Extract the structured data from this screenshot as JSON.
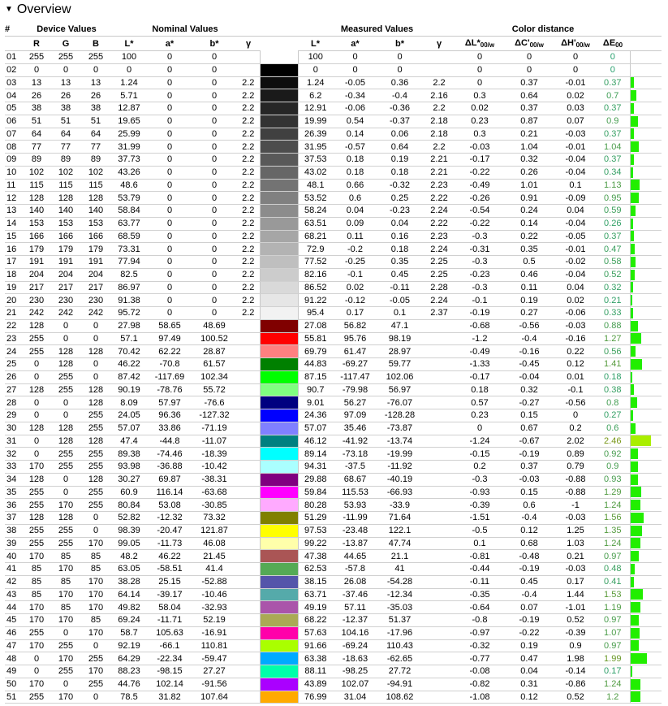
{
  "title": "Overview",
  "headers": {
    "num": "#",
    "device": "Device Values",
    "nominal": "Nominal Values",
    "measured": "Measured Values",
    "distance": "Color distance",
    "R": "R",
    "G": "G",
    "B": "B",
    "L": "L*",
    "a": "a*",
    "b": "b*",
    "gamma": "γ",
    "dL": "ΔL*",
    "dL_sub": "00/w",
    "dC": "ΔC'",
    "dC_sub": "00/w",
    "dH": "ΔH'",
    "dH_sub": "00/w",
    "dE": "ΔE",
    "dE_sub": "00"
  },
  "colors": {
    "bar_ok": "#22ee00",
    "bar_warn": "#aaee00",
    "grid": "#d0d0d0"
  },
  "rows": [
    [
      "01",
      "255",
      "255",
      "255",
      "100",
      "0",
      "0",
      "",
      "100",
      "0",
      "0",
      "",
      "0",
      "0",
      "0",
      "0"
    ],
    [
      "02",
      "0",
      "0",
      "0",
      "0",
      "0",
      "0",
      "",
      "0",
      "0",
      "0",
      "",
      "0",
      "0",
      "0",
      "0"
    ],
    [
      "03",
      "13",
      "13",
      "13",
      "1.24",
      "0",
      "0",
      "2.2",
      "1.24",
      "-0.05",
      "0.36",
      "2.2",
      "0",
      "0.37",
      "-0.01",
      "0.37"
    ],
    [
      "04",
      "26",
      "26",
      "26",
      "5.71",
      "0",
      "0",
      "2.2",
      "6.2",
      "-0.34",
      "-0.4",
      "2.16",
      "0.3",
      "0.64",
      "0.02",
      "0.7"
    ],
    [
      "05",
      "38",
      "38",
      "38",
      "12.87",
      "0",
      "0",
      "2.2",
      "12.91",
      "-0.06",
      "-0.36",
      "2.2",
      "0.02",
      "0.37",
      "0.03",
      "0.37"
    ],
    [
      "06",
      "51",
      "51",
      "51",
      "19.65",
      "0",
      "0",
      "2.2",
      "19.99",
      "0.54",
      "-0.37",
      "2.18",
      "0.23",
      "0.87",
      "0.07",
      "0.9"
    ],
    [
      "07",
      "64",
      "64",
      "64",
      "25.99",
      "0",
      "0",
      "2.2",
      "26.39",
      "0.14",
      "0.06",
      "2.18",
      "0.3",
      "0.21",
      "-0.03",
      "0.37"
    ],
    [
      "08",
      "77",
      "77",
      "77",
      "31.99",
      "0",
      "0",
      "2.2",
      "31.95",
      "-0.57",
      "0.64",
      "2.2",
      "-0.03",
      "1.04",
      "-0.01",
      "1.04"
    ],
    [
      "09",
      "89",
      "89",
      "89",
      "37.73",
      "0",
      "0",
      "2.2",
      "37.53",
      "0.18",
      "0.19",
      "2.21",
      "-0.17",
      "0.32",
      "-0.04",
      "0.37"
    ],
    [
      "10",
      "102",
      "102",
      "102",
      "43.26",
      "0",
      "0",
      "2.2",
      "43.02",
      "0.18",
      "0.18",
      "2.21",
      "-0.22",
      "0.26",
      "-0.04",
      "0.34"
    ],
    [
      "11",
      "115",
      "115",
      "115",
      "48.6",
      "0",
      "0",
      "2.2",
      "48.1",
      "0.66",
      "-0.32",
      "2.23",
      "-0.49",
      "1.01",
      "0.1",
      "1.13"
    ],
    [
      "12",
      "128",
      "128",
      "128",
      "53.79",
      "0",
      "0",
      "2.2",
      "53.52",
      "0.6",
      "0.25",
      "2.22",
      "-0.26",
      "0.91",
      "-0.09",
      "0.95"
    ],
    [
      "13",
      "140",
      "140",
      "140",
      "58.84",
      "0",
      "0",
      "2.2",
      "58.24",
      "0.04",
      "-0.23",
      "2.24",
      "-0.54",
      "0.24",
      "0.04",
      "0.59"
    ],
    [
      "14",
      "153",
      "153",
      "153",
      "63.77",
      "0",
      "0",
      "2.2",
      "63.51",
      "0.09",
      "0.04",
      "2.22",
      "-0.22",
      "0.14",
      "-0.04",
      "0.26"
    ],
    [
      "15",
      "166",
      "166",
      "166",
      "68.59",
      "0",
      "0",
      "2.2",
      "68.21",
      "0.11",
      "0.16",
      "2.23",
      "-0.3",
      "0.22",
      "-0.05",
      "0.37"
    ],
    [
      "16",
      "179",
      "179",
      "179",
      "73.31",
      "0",
      "0",
      "2.2",
      "72.9",
      "-0.2",
      "0.18",
      "2.24",
      "-0.31",
      "0.35",
      "-0.01",
      "0.47"
    ],
    [
      "17",
      "191",
      "191",
      "191",
      "77.94",
      "0",
      "0",
      "2.2",
      "77.52",
      "-0.25",
      "0.35",
      "2.25",
      "-0.3",
      "0.5",
      "-0.02",
      "0.58"
    ],
    [
      "18",
      "204",
      "204",
      "204",
      "82.5",
      "0",
      "0",
      "2.2",
      "82.16",
      "-0.1",
      "0.45",
      "2.25",
      "-0.23",
      "0.46",
      "-0.04",
      "0.52"
    ],
    [
      "19",
      "217",
      "217",
      "217",
      "86.97",
      "0",
      "0",
      "2.2",
      "86.52",
      "0.02",
      "-0.11",
      "2.28",
      "-0.3",
      "0.11",
      "0.04",
      "0.32"
    ],
    [
      "20",
      "230",
      "230",
      "230",
      "91.38",
      "0",
      "0",
      "2.2",
      "91.22",
      "-0.12",
      "-0.05",
      "2.24",
      "-0.1",
      "0.19",
      "0.02",
      "0.21"
    ],
    [
      "21",
      "242",
      "242",
      "242",
      "95.72",
      "0",
      "0",
      "2.2",
      "95.4",
      "0.17",
      "0.1",
      "2.37",
      "-0.19",
      "0.27",
      "-0.06",
      "0.33"
    ],
    [
      "22",
      "128",
      "0",
      "0",
      "27.98",
      "58.65",
      "48.69",
      "",
      "27.08",
      "56.82",
      "47.1",
      "",
      "-0.68",
      "-0.56",
      "-0.03",
      "0.88"
    ],
    [
      "23",
      "255",
      "0",
      "0",
      "57.1",
      "97.49",
      "100.52",
      "",
      "55.81",
      "95.76",
      "98.19",
      "",
      "-1.2",
      "-0.4",
      "-0.16",
      "1.27"
    ],
    [
      "24",
      "255",
      "128",
      "128",
      "70.42",
      "62.22",
      "28.87",
      "",
      "69.79",
      "61.47",
      "28.97",
      "",
      "-0.49",
      "-0.16",
      "0.22",
      "0.56"
    ],
    [
      "25",
      "0",
      "128",
      "0",
      "46.22",
      "-70.8",
      "61.57",
      "",
      "44.83",
      "-69.27",
      "59.77",
      "",
      "-1.33",
      "-0.45",
      "0.12",
      "1.41"
    ],
    [
      "26",
      "0",
      "255",
      "0",
      "87.42",
      "-117.69",
      "102.34",
      "",
      "87.15",
      "-117.47",
      "102.06",
      "",
      "-0.17",
      "-0.04",
      "0.01",
      "0.18"
    ],
    [
      "27",
      "128",
      "255",
      "128",
      "90.19",
      "-78.76",
      "55.72",
      "",
      "90.7",
      "-79.98",
      "56.97",
      "",
      "0.18",
      "0.32",
      "-0.1",
      "0.38"
    ],
    [
      "28",
      "0",
      "0",
      "128",
      "8.09",
      "57.97",
      "-76.6",
      "",
      "9.01",
      "56.27",
      "-76.07",
      "",
      "0.57",
      "-0.27",
      "-0.56",
      "0.8"
    ],
    [
      "29",
      "0",
      "0",
      "255",
      "24.05",
      "96.36",
      "-127.32",
      "",
      "24.36",
      "97.09",
      "-128.28",
      "",
      "0.23",
      "0.15",
      "0",
      "0.27"
    ],
    [
      "30",
      "128",
      "128",
      "255",
      "57.07",
      "33.86",
      "-71.19",
      "",
      "57.07",
      "35.46",
      "-73.87",
      "",
      "0",
      "0.67",
      "0.2",
      "0.6"
    ],
    [
      "31",
      "0",
      "128",
      "128",
      "47.4",
      "-44.8",
      "-11.07",
      "",
      "46.12",
      "-41.92",
      "-13.74",
      "",
      "-1.24",
      "-0.67",
      "2.02",
      "2.46"
    ],
    [
      "32",
      "0",
      "255",
      "255",
      "89.38",
      "-74.46",
      "-18.39",
      "",
      "89.14",
      "-73.18",
      "-19.99",
      "",
      "-0.15",
      "-0.19",
      "0.89",
      "0.92"
    ],
    [
      "33",
      "170",
      "255",
      "255",
      "93.98",
      "-36.88",
      "-10.42",
      "",
      "94.31",
      "-37.5",
      "-11.92",
      "",
      "0.2",
      "0.37",
      "0.79",
      "0.9"
    ],
    [
      "34",
      "128",
      "0",
      "128",
      "30.27",
      "69.87",
      "-38.31",
      "",
      "29.88",
      "68.67",
      "-40.19",
      "",
      "-0.3",
      "-0.03",
      "-0.88",
      "0.93"
    ],
    [
      "35",
      "255",
      "0",
      "255",
      "60.9",
      "116.14",
      "-63.68",
      "",
      "59.84",
      "115.53",
      "-66.93",
      "",
      "-0.93",
      "0.15",
      "-0.88",
      "1.29"
    ],
    [
      "36",
      "255",
      "170",
      "255",
      "80.84",
      "53.08",
      "-30.85",
      "",
      "80.28",
      "53.93",
      "-33.9",
      "",
      "-0.39",
      "0.6",
      "-1",
      "1.24"
    ],
    [
      "37",
      "128",
      "128",
      "0",
      "52.82",
      "-12.32",
      "73.32",
      "",
      "51.29",
      "-11.99",
      "71.64",
      "",
      "-1.51",
      "-0.4",
      "-0.03",
      "1.56"
    ],
    [
      "38",
      "255",
      "255",
      "0",
      "98.39",
      "-20.47",
      "121.87",
      "",
      "97.53",
      "-23.48",
      "122.1",
      "",
      "-0.5",
      "0.12",
      "1.25",
      "1.35"
    ],
    [
      "39",
      "255",
      "255",
      "170",
      "99.05",
      "-11.73",
      "46.08",
      "",
      "99.22",
      "-13.87",
      "47.74",
      "",
      "0.1",
      "0.68",
      "1.03",
      "1.24"
    ],
    [
      "40",
      "170",
      "85",
      "85",
      "48.2",
      "46.22",
      "21.45",
      "",
      "47.38",
      "44.65",
      "21.1",
      "",
      "-0.81",
      "-0.48",
      "0.21",
      "0.97"
    ],
    [
      "41",
      "85",
      "170",
      "85",
      "63.05",
      "-58.51",
      "41.4",
      "",
      "62.53",
      "-57.8",
      "41",
      "",
      "-0.44",
      "-0.19",
      "-0.03",
      "0.48"
    ],
    [
      "42",
      "85",
      "85",
      "170",
      "38.28",
      "25.15",
      "-52.88",
      "",
      "38.15",
      "26.08",
      "-54.28",
      "",
      "-0.11",
      "0.45",
      "0.17",
      "0.41"
    ],
    [
      "43",
      "85",
      "170",
      "170",
      "64.14",
      "-39.17",
      "-10.46",
      "",
      "63.71",
      "-37.46",
      "-12.34",
      "",
      "-0.35",
      "-0.4",
      "1.44",
      "1.53"
    ],
    [
      "44",
      "170",
      "85",
      "170",
      "49.82",
      "58.04",
      "-32.93",
      "",
      "49.19",
      "57.11",
      "-35.03",
      "",
      "-0.64",
      "0.07",
      "-1.01",
      "1.19"
    ],
    [
      "45",
      "170",
      "170",
      "85",
      "69.24",
      "-11.71",
      "52.19",
      "",
      "68.22",
      "-12.37",
      "51.37",
      "",
      "-0.8",
      "-0.19",
      "0.52",
      "0.97"
    ],
    [
      "46",
      "255",
      "0",
      "170",
      "58.7",
      "105.63",
      "-16.91",
      "",
      "57.63",
      "104.16",
      "-17.96",
      "",
      "-0.97",
      "-0.22",
      "-0.39",
      "1.07"
    ],
    [
      "47",
      "170",
      "255",
      "0",
      "92.19",
      "-66.1",
      "110.81",
      "",
      "91.66",
      "-69.24",
      "110.43",
      "",
      "-0.32",
      "0.19",
      "0.9",
      "0.97"
    ],
    [
      "48",
      "0",
      "170",
      "255",
      "64.29",
      "-22.34",
      "-59.47",
      "",
      "63.38",
      "-18.63",
      "-62.65",
      "",
      "-0.77",
      "0.47",
      "1.98",
      "1.99"
    ],
    [
      "49",
      "0",
      "255",
      "170",
      "88.23",
      "-98.15",
      "27.27",
      "",
      "88.11",
      "-98.25",
      "27.72",
      "",
      "-0.08",
      "0.04",
      "-0.14",
      "0.17"
    ],
    [
      "50",
      "170",
      "0",
      "255",
      "44.76",
      "102.14",
      "-91.56",
      "",
      "43.89",
      "102.07",
      "-94.91",
      "",
      "-0.82",
      "0.31",
      "-0.86",
      "1.24"
    ],
    [
      "51",
      "255",
      "170",
      "0",
      "78.5",
      "31.82",
      "107.64",
      "",
      "76.99",
      "31.04",
      "108.62",
      "",
      "-1.08",
      "0.12",
      "0.52",
      "1.2"
    ]
  ]
}
